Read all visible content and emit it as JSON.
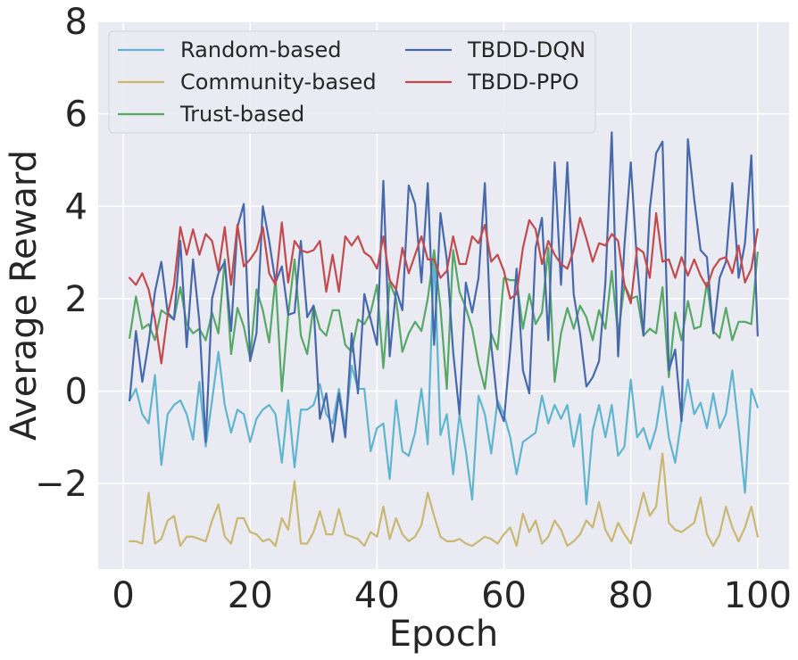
{
  "chart_data": {
    "type": "line",
    "title": "",
    "xlabel": "Epoch",
    "ylabel": "Average Reward",
    "xlim": [
      -3.95,
      104.95
    ],
    "ylim": [
      -3.85,
      8
    ],
    "xticks": [
      0,
      20,
      40,
      60,
      80,
      100
    ],
    "yticks": [
      -2,
      0,
      2,
      4,
      6,
      8
    ],
    "ytick_labels": [
      "−2",
      "0",
      "2",
      "4",
      "6",
      "8"
    ],
    "grid": true,
    "legend_position": "upper-left",
    "legend_columns": 2,
    "x": [
      1,
      2,
      3,
      4,
      5,
      6,
      7,
      8,
      9,
      10,
      11,
      12,
      13,
      14,
      15,
      16,
      17,
      18,
      19,
      20,
      21,
      22,
      23,
      24,
      25,
      26,
      27,
      28,
      29,
      30,
      31,
      32,
      33,
      34,
      35,
      36,
      37,
      38,
      39,
      40,
      41,
      42,
      43,
      44,
      45,
      46,
      47,
      48,
      49,
      50,
      51,
      52,
      53,
      54,
      55,
      56,
      57,
      58,
      59,
      60,
      61,
      62,
      63,
      64,
      65,
      66,
      67,
      68,
      69,
      70,
      71,
      72,
      73,
      74,
      75,
      76,
      77,
      78,
      79,
      80,
      81,
      82,
      83,
      84,
      85,
      86,
      87,
      88,
      89,
      90,
      91,
      92,
      93,
      94,
      95,
      96,
      97,
      98,
      99,
      100
    ],
    "series": [
      {
        "name": "Random-based",
        "color": "#5fb5cf",
        "values": [
          -0.2,
          0.05,
          -0.5,
          -0.7,
          0.35,
          -1.6,
          -0.5,
          -0.3,
          -0.2,
          -0.5,
          -1.05,
          0.2,
          -1.2,
          -0.2,
          0.85,
          -0.3,
          -0.9,
          -0.4,
          -0.5,
          -1.1,
          -0.6,
          -0.4,
          -0.3,
          -0.5,
          -1.55,
          -0.2,
          -1.65,
          -0.4,
          -0.4,
          -0.3,
          0.15,
          -0.5,
          -0.7,
          0.05,
          -0.8,
          0.55,
          0.05,
          0.05,
          -1.3,
          -0.8,
          -0.7,
          -1.9,
          -0.2,
          -1.3,
          -1.4,
          -0.9,
          0.05,
          -1.15,
          3.0,
          -0.95,
          -0.5,
          -1.8,
          -0.5,
          -1.3,
          -2.35,
          -0.1,
          -0.5,
          -1.35,
          -0.2,
          -0.5,
          -1.0,
          -1.8,
          -1.1,
          -1.0,
          -0.9,
          -0.1,
          -0.7,
          -0.3,
          -0.6,
          -0.3,
          -1.2,
          -0.5,
          -2.45,
          -0.85,
          -0.3,
          -1.0,
          -0.3,
          -1.4,
          -1.2,
          0.25,
          -1.0,
          -0.8,
          -1.25,
          -0.8,
          0.1,
          -1.0,
          -1.55,
          -0.6,
          0.25,
          -0.5,
          -0.25,
          -0.8,
          -0.05,
          -0.8,
          -0.5,
          0.45,
          -0.8,
          -2.2,
          0.05,
          -0.35
        ]
      },
      {
        "name": "Community-based",
        "color": "#c9b772",
        "values": [
          -3.25,
          -3.25,
          -3.3,
          -2.2,
          -3.3,
          -3.2,
          -2.8,
          -2.7,
          -3.35,
          -3.15,
          -3.15,
          -3.2,
          -3.25,
          -2.8,
          -2.45,
          -3.15,
          -3.3,
          -2.75,
          -2.75,
          -3.05,
          -3.1,
          -3.25,
          -3.2,
          -3.35,
          -2.75,
          -3.0,
          -1.95,
          -3.3,
          -3.3,
          -3.05,
          -2.6,
          -3.1,
          -3.1,
          -2.55,
          -3.1,
          -3.15,
          -3.2,
          -3.35,
          -3.05,
          -3.15,
          -2.5,
          -3.2,
          -2.75,
          -3.1,
          -3.25,
          -3.15,
          -2.9,
          -2.2,
          -2.7,
          -3.15,
          -3.25,
          -3.25,
          -3.2,
          -3.3,
          -3.35,
          -3.25,
          -3.15,
          -3.2,
          -3.3,
          -3.1,
          -2.95,
          -3.35,
          -2.65,
          -3.05,
          -2.8,
          -3.3,
          -3.15,
          -2.8,
          -3.0,
          -3.35,
          -3.25,
          -3.1,
          -2.8,
          -2.95,
          -2.4,
          -3.0,
          -3.25,
          -2.85,
          -3.1,
          -3.3,
          -2.75,
          -2.2,
          -2.7,
          -2.5,
          -1.35,
          -2.85,
          -3.0,
          -3.05,
          -2.95,
          -2.85,
          -2.3,
          -3.1,
          -3.35,
          -3.1,
          -2.5,
          -2.95,
          -3.25,
          -2.95,
          -2.5,
          -3.15
        ]
      },
      {
        "name": "Trust-based",
        "color": "#55a865",
        "values": [
          1.15,
          2.05,
          1.35,
          1.45,
          1.1,
          1.75,
          1.65,
          1.55,
          2.25,
          1.45,
          1.25,
          1.35,
          1.1,
          1.7,
          1.25,
          2.85,
          0.8,
          1.8,
          1.4,
          0.7,
          2.2,
          1.75,
          1.05,
          2.45,
          0.0,
          1.65,
          2.85,
          1.2,
          0.8,
          1.85,
          1.35,
          1.2,
          1.75,
          1.75,
          1.0,
          0.85,
          1.55,
          1.45,
          1.7,
          2.3,
          0.5,
          2.35,
          2.0,
          0.85,
          1.25,
          1.5,
          1.3,
          2.0,
          3.05,
          1.8,
          0.05,
          3.05,
          2.15,
          1.8,
          1.35,
          0.6,
          0.05,
          1.25,
          0.9,
          2.45,
          2.4,
          2.4,
          1.35,
          2.1,
          1.45,
          1.7,
          3.1,
          0.2,
          1.25,
          1.8,
          1.35,
          1.85,
          1.6,
          1.1,
          1.75,
          1.35,
          2.6,
          1.2,
          2.3,
          2.0,
          2.05,
          1.2,
          1.35,
          1.25,
          2.25,
          0.3,
          1.7,
          1.1,
          1.95,
          1.35,
          1.4,
          2.35,
          1.3,
          1.15,
          1.8,
          1.1,
          1.5,
          1.5,
          1.45,
          3.0
        ]
      },
      {
        "name": "TBDD-DQN",
        "color": "#4668ac",
        "values": [
          -0.2,
          1.3,
          0.2,
          1.05,
          2.15,
          2.8,
          1.7,
          1.55,
          3.25,
          0.95,
          2.85,
          1.5,
          -1.1,
          2.0,
          2.55,
          2.8,
          1.3,
          3.55,
          4.05,
          0.65,
          1.25,
          4.0,
          3.25,
          2.35,
          2.7,
          1.65,
          1.7,
          3.25,
          1.6,
          1.85,
          -0.6,
          -0.05,
          -1.1,
          -0.05,
          -1.0,
          1.25,
          -0.05,
          2.1,
          1.55,
          1.0,
          4.55,
          0.75,
          2.2,
          1.75,
          4.45,
          4.05,
          2.35,
          4.5,
          1.0,
          3.85,
          2.85,
          0.85,
          -0.5,
          2.35,
          1.7,
          2.45,
          4.5,
          1.0,
          -0.3,
          -0.65,
          0.9,
          2.65,
          0.45,
          -0.05,
          3.1,
          3.75,
          1.1,
          4.95,
          2.3,
          4.95,
          2.1,
          1.25,
          0.1,
          0.3,
          0.65,
          2.35,
          5.6,
          0.75,
          3.15,
          4.95,
          2.75,
          1.2,
          3.95,
          5.15,
          5.4,
          0.45,
          0.9,
          -0.65,
          5.45,
          4.15,
          3.05,
          2.9,
          1.25,
          2.45,
          2.8,
          4.5,
          2.45,
          3.2,
          5.1,
          1.2
        ]
      },
      {
        "name": "TBDD-PPO",
        "color": "#c24a4d",
        "values": [
          2.45,
          2.3,
          2.55,
          2.2,
          1.55,
          0.6,
          1.65,
          2.3,
          3.55,
          2.95,
          3.5,
          2.95,
          3.4,
          3.25,
          2.6,
          3.55,
          2.3,
          3.6,
          2.7,
          2.85,
          3.05,
          3.55,
          2.55,
          2.3,
          3.65,
          2.35,
          3.25,
          3.05,
          3.0,
          3.05,
          3.25,
          2.15,
          2.95,
          2.15,
          3.35,
          3.15,
          3.35,
          3.0,
          2.9,
          2.65,
          3.35,
          2.4,
          2.2,
          3.1,
          2.55,
          2.95,
          3.35,
          2.85,
          2.85,
          2.45,
          2.6,
          3.35,
          2.75,
          2.75,
          3.35,
          3.2,
          3.6,
          2.8,
          2.95,
          2.6,
          2.0,
          2.1,
          3.1,
          3.7,
          3.5,
          2.75,
          3.25,
          2.95,
          2.75,
          2.65,
          3.05,
          3.75,
          3.3,
          2.8,
          3.2,
          3.15,
          3.4,
          3.25,
          2.3,
          1.9,
          3.1,
          3.0,
          2.45,
          3.85,
          2.8,
          2.85,
          2.45,
          2.9,
          2.5,
          2.85,
          2.5,
          2.25,
          2.65,
          2.85,
          2.9,
          2.55,
          3.15,
          2.35,
          2.65,
          3.5
        ]
      }
    ]
  }
}
